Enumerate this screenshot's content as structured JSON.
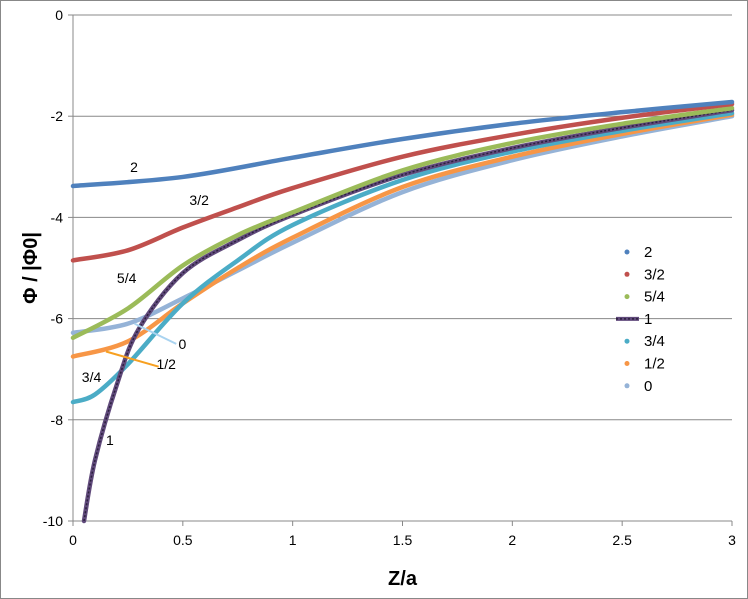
{
  "chart_data": {
    "type": "line",
    "xlabel": "Z/a",
    "ylabel": "Φ / |Φ0|",
    "xlim": [
      0,
      3
    ],
    "ylim": [
      -10,
      0
    ],
    "x_ticks": [
      "0",
      "0.5",
      "1",
      "1.5",
      "2",
      "2.5",
      "3"
    ],
    "y_ticks": [
      "0",
      "-2",
      "-4",
      "-6",
      "-8",
      "-10"
    ],
    "grid": "horizontal",
    "legend_placement": "right",
    "series": [
      {
        "name": "2",
        "color": "#4f81bd",
        "x": [
          0,
          0.5,
          1,
          1.5,
          2,
          2.5,
          3
        ],
        "y": [
          -3.38,
          -3.2,
          -2.82,
          -2.45,
          -2.15,
          -1.92,
          -1.72
        ]
      },
      {
        "name": "3/2",
        "color": "#c0504d",
        "x": [
          0,
          0.25,
          0.5,
          0.75,
          1,
          1.5,
          2,
          2.5,
          3
        ],
        "y": [
          -4.85,
          -4.65,
          -4.2,
          -3.8,
          -3.42,
          -2.8,
          -2.37,
          -2.03,
          -1.76
        ]
      },
      {
        "name": "5/4",
        "color": "#9bbb59",
        "x": [
          0,
          0.25,
          0.5,
          0.75,
          1,
          1.5,
          2,
          2.5,
          3
        ],
        "y": [
          -6.38,
          -5.8,
          -4.95,
          -4.35,
          -3.9,
          -3.07,
          -2.53,
          -2.15,
          -1.84
        ]
      },
      {
        "name": "1",
        "color": "#604a7b",
        "x": [
          0.05,
          0.1,
          0.2,
          0.3,
          0.5,
          0.75,
          1,
          1.5,
          2,
          2.5,
          3
        ],
        "y": [
          -10,
          -8.8,
          -7.3,
          -6.2,
          -5.1,
          -4.45,
          -3.95,
          -3.16,
          -2.63,
          -2.23,
          -1.88
        ]
      },
      {
        "name": "3/4",
        "color": "#4bacc6",
        "x": [
          0,
          0.1,
          0.25,
          0.5,
          0.75,
          1,
          1.5,
          2,
          2.5,
          3
        ],
        "y": [
          -7.65,
          -7.5,
          -6.9,
          -5.7,
          -4.85,
          -4.15,
          -3.26,
          -2.7,
          -2.29,
          -1.94
        ]
      },
      {
        "name": "1/2",
        "color": "#f79646",
        "x": [
          0,
          0.25,
          0.5,
          0.75,
          1,
          1.5,
          2,
          2.5,
          3
        ],
        "y": [
          -6.75,
          -6.45,
          -5.7,
          -5.0,
          -4.4,
          -3.4,
          -2.8,
          -2.35,
          -1.97
        ]
      },
      {
        "name": "0",
        "color": "#95b3d7",
        "x": [
          0,
          0.25,
          0.5,
          0.75,
          1,
          1.5,
          2,
          2.5,
          3
        ],
        "y": [
          -6.28,
          -6.1,
          -5.6,
          -5.05,
          -4.5,
          -3.5,
          -2.87,
          -2.4,
          -2.0
        ]
      }
    ],
    "annotations": [
      {
        "text": "2",
        "x": 0.26,
        "y": -3.1
      },
      {
        "text": "3/2",
        "x": 0.53,
        "y": -3.75
      },
      {
        "text": "5/4",
        "x": 0.2,
        "y": -5.3
      },
      {
        "text": "0",
        "x": 0.48,
        "y": -6.6
      },
      {
        "text": "1/2",
        "x": 0.38,
        "y": -7.0
      },
      {
        "text": "3/4",
        "x": 0.04,
        "y": -7.25
      },
      {
        "text": "1",
        "x": 0.15,
        "y": -8.5
      }
    ]
  }
}
